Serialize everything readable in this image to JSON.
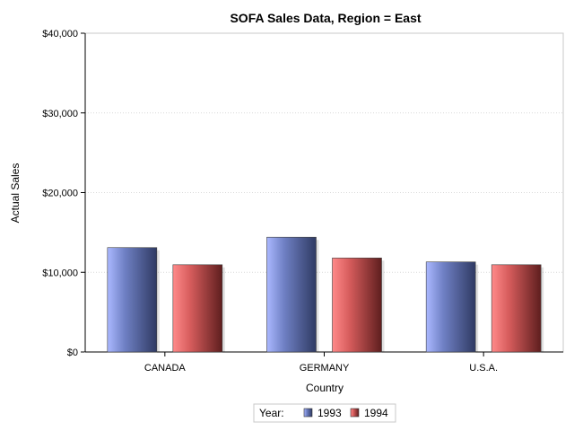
{
  "chart_data": {
    "type": "bar",
    "title": "SOFA Sales Data, Region = East",
    "xlabel": "Country",
    "ylabel": "Actual Sales",
    "categories": [
      "CANADA",
      "GERMANY",
      "U.S.A."
    ],
    "series": [
      {
        "name": "1993",
        "values": [
          13100,
          14400,
          11300
        ],
        "color": "#7083c6"
      },
      {
        "name": "1994",
        "values": [
          10950,
          11800,
          10950
        ],
        "color": "#d05a5a"
      }
    ],
    "ylim": [
      0,
      40000
    ],
    "yticks": [
      0,
      10000,
      20000,
      30000,
      40000
    ],
    "ytick_labels": [
      "$0",
      "$10,000",
      "$20,000",
      "$30,000",
      "$40,000"
    ],
    "grid": true,
    "legend_title": "Year:",
    "legend_position": "bottom-center"
  }
}
